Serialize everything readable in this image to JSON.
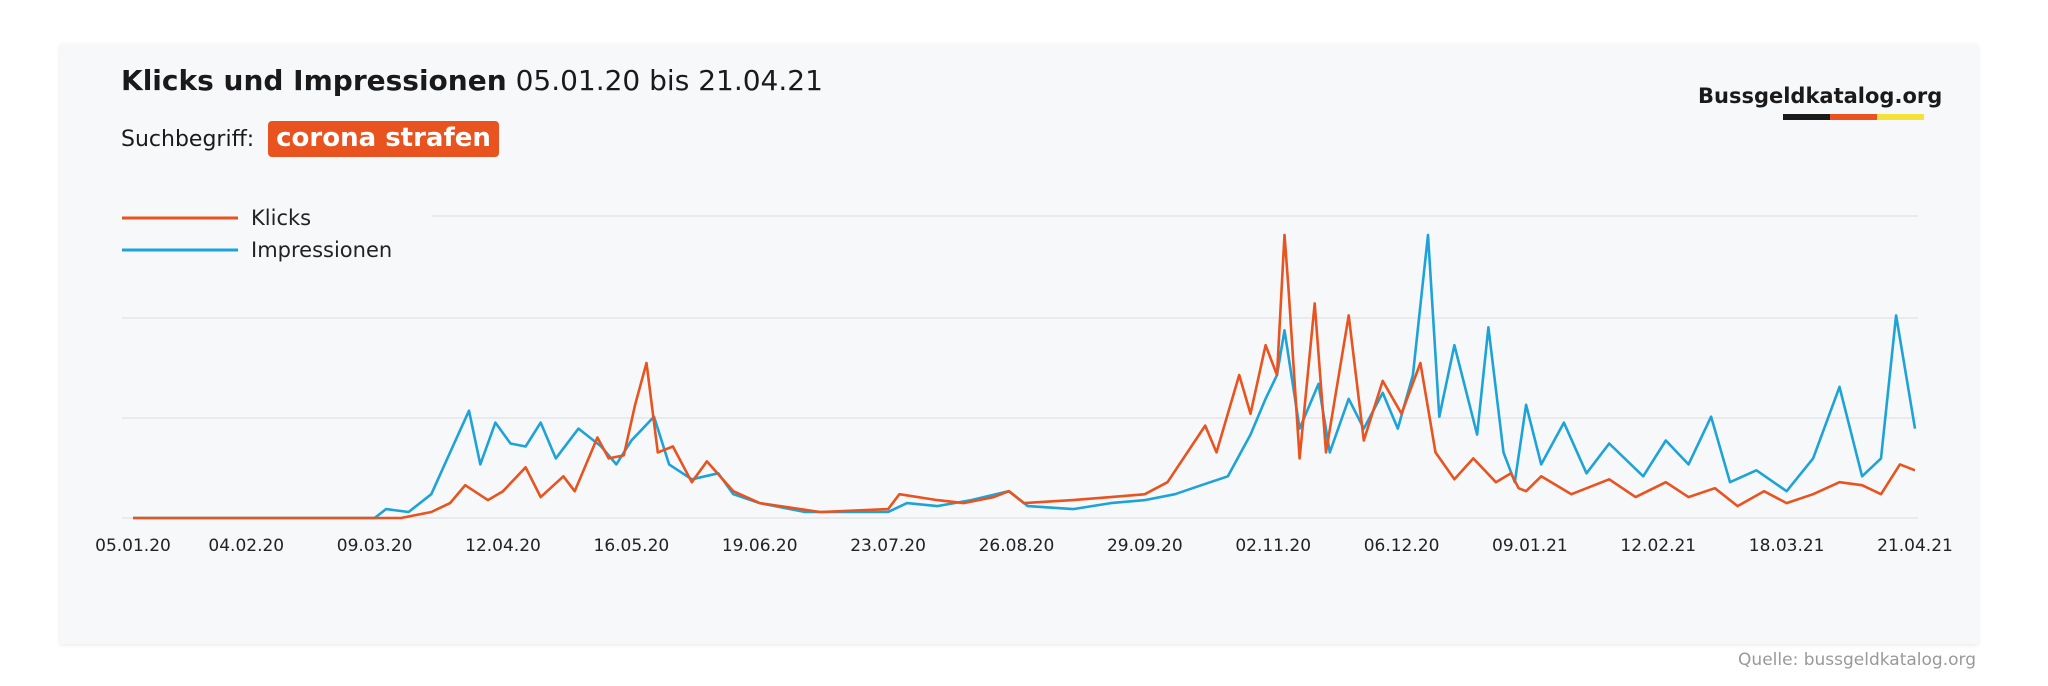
{
  "header": {
    "title_bold": "Klicks und Impressionen",
    "title_range": "05.01.20 bis 21.04.21",
    "search_label": "Suchbegriff:",
    "search_term": "corona strafen",
    "brand": "Bussgeldkatalog.org",
    "source": "Quelle: bussgeldkatalog.org"
  },
  "colors": {
    "klicks": "#e9531f",
    "impressionen": "#1ea3d8",
    "tag_bg": "#e9531f",
    "flag": [
      "#1a1a1a",
      "#e9531f",
      "#f2e23a"
    ]
  },
  "chart_data": {
    "type": "line",
    "x_ticks": [
      "05.01.20",
      "04.02.20",
      "09.03.20",
      "12.04.20",
      "16.05.20",
      "19.06.20",
      "23.07.20",
      "26.08.20",
      "29.09.20",
      "02.11.20",
      "06.12.20",
      "09.01.21",
      "12.02.21",
      "18.03.21",
      "21.04.21"
    ],
    "legend_position": "top-left",
    "grid": "horizontal",
    "y_ticks_labeled": false,
    "series": [
      {
        "name": "Klicks",
        "color": "#e9531f",
        "points": [
          [
            "05.01.20",
            0
          ],
          [
            "09.03.20",
            0
          ],
          [
            "16.03.20",
            0
          ],
          [
            "24.03.20",
            2
          ],
          [
            "29.03.20",
            5
          ],
          [
            "02.04.20",
            11
          ],
          [
            "08.04.20",
            6
          ],
          [
            "12.04.20",
            9
          ],
          [
            "18.04.20",
            17
          ],
          [
            "22.04.20",
            7
          ],
          [
            "28.04.20",
            14
          ],
          [
            "01.05.20",
            9
          ],
          [
            "07.05.20",
            27
          ],
          [
            "10.05.20",
            20
          ],
          [
            "14.05.20",
            21
          ],
          [
            "17.05.20",
            38
          ],
          [
            "20.05.20",
            52
          ],
          [
            "23.05.20",
            22
          ],
          [
            "27.05.20",
            24
          ],
          [
            "01.06.20",
            12
          ],
          [
            "05.06.20",
            19
          ],
          [
            "12.06.20",
            9
          ],
          [
            "19.06.20",
            5
          ],
          [
            "05.07.20",
            2
          ],
          [
            "23.07.20",
            3
          ],
          [
            "26.07.20",
            8
          ],
          [
            "05.08.20",
            6
          ],
          [
            "12.08.20",
            5
          ],
          [
            "20.08.20",
            7
          ],
          [
            "24.08.20",
            9
          ],
          [
            "28.08.20",
            5
          ],
          [
            "10.09.20",
            6
          ],
          [
            "20.09.20",
            7
          ],
          [
            "29.09.20",
            8
          ],
          [
            "05.10.20",
            12
          ],
          [
            "15.10.20",
            31
          ],
          [
            "18.10.20",
            22
          ],
          [
            "24.10.20",
            48
          ],
          [
            "27.10.20",
            35
          ],
          [
            "31.10.20",
            58
          ],
          [
            "03.11.20",
            48
          ],
          [
            "05.11.20",
            95
          ],
          [
            "06.11.20",
            78
          ],
          [
            "09.11.20",
            20
          ],
          [
            "13.11.20",
            72
          ],
          [
            "16.11.20",
            22
          ],
          [
            "22.11.20",
            68
          ],
          [
            "26.11.20",
            26
          ],
          [
            "01.12.20",
            46
          ],
          [
            "06.12.20",
            35
          ],
          [
            "11.12.20",
            52
          ],
          [
            "15.12.20",
            22
          ],
          [
            "20.12.20",
            13
          ],
          [
            "25.12.20",
            20
          ],
          [
            "31.12.20",
            12
          ],
          [
            "04.01.21",
            15
          ],
          [
            "06.01.21",
            10
          ],
          [
            "08.01.21",
            9
          ],
          [
            "12.01.21",
            14
          ],
          [
            "20.01.21",
            8
          ],
          [
            "30.01.21",
            13
          ],
          [
            "06.02.21",
            7
          ],
          [
            "14.02.21",
            12
          ],
          [
            "20.02.21",
            7
          ],
          [
            "27.02.21",
            10
          ],
          [
            "05.03.21",
            4
          ],
          [
            "12.03.21",
            9
          ],
          [
            "18.03.21",
            5
          ],
          [
            "25.03.21",
            8
          ],
          [
            "01.04.21",
            12
          ],
          [
            "07.04.21",
            11
          ],
          [
            "12.04.21",
            8
          ],
          [
            "17.04.21",
            18
          ],
          [
            "21.04.21",
            16
          ]
        ]
      },
      {
        "name": "Impressionen",
        "color": "#1ea3d8",
        "points": [
          [
            "05.01.20",
            0
          ],
          [
            "09.03.20",
            0
          ],
          [
            "12.03.20",
            3
          ],
          [
            "18.03.20",
            2
          ],
          [
            "24.03.20",
            8
          ],
          [
            "29.03.20",
            22
          ],
          [
            "03.04.20",
            36
          ],
          [
            "06.04.20",
            18
          ],
          [
            "10.04.20",
            32
          ],
          [
            "14.04.20",
            25
          ],
          [
            "18.04.20",
            24
          ],
          [
            "22.04.20",
            32
          ],
          [
            "26.04.20",
            20
          ],
          [
            "02.05.20",
            30
          ],
          [
            "08.05.20",
            24
          ],
          [
            "12.05.20",
            18
          ],
          [
            "16.05.20",
            26
          ],
          [
            "22.05.20",
            34
          ],
          [
            "26.05.20",
            18
          ],
          [
            "01.06.20",
            13
          ],
          [
            "08.06.20",
            15
          ],
          [
            "12.06.20",
            8
          ],
          [
            "19.06.20",
            5
          ],
          [
            "01.07.20",
            2
          ],
          [
            "23.07.20",
            2
          ],
          [
            "28.07.20",
            5
          ],
          [
            "05.08.20",
            4
          ],
          [
            "14.08.20",
            6
          ],
          [
            "24.08.20",
            9
          ],
          [
            "29.08.20",
            4
          ],
          [
            "10.09.20",
            3
          ],
          [
            "20.09.20",
            5
          ],
          [
            "29.09.20",
            6
          ],
          [
            "07.10.20",
            8
          ],
          [
            "14.10.20",
            11
          ],
          [
            "21.10.20",
            14
          ],
          [
            "27.10.20",
            28
          ],
          [
            "31.10.20",
            40
          ],
          [
            "03.11.20",
            48
          ],
          [
            "05.11.20",
            63
          ],
          [
            "09.11.20",
            30
          ],
          [
            "14.11.20",
            45
          ],
          [
            "17.11.20",
            22
          ],
          [
            "22.11.20",
            40
          ],
          [
            "26.11.20",
            30
          ],
          [
            "01.12.20",
            42
          ],
          [
            "05.12.20",
            30
          ],
          [
            "09.12.20",
            48
          ],
          [
            "13.12.20",
            95
          ],
          [
            "16.12.20",
            34
          ],
          [
            "20.12.20",
            58
          ],
          [
            "26.12.20",
            28
          ],
          [
            "29.12.20",
            64
          ],
          [
            "02.01.21",
            22
          ],
          [
            "05.01.21",
            12
          ],
          [
            "08.01.21",
            38
          ],
          [
            "12.01.21",
            18
          ],
          [
            "18.01.21",
            32
          ],
          [
            "24.01.21",
            15
          ],
          [
            "30.01.21",
            25
          ],
          [
            "08.02.21",
            14
          ],
          [
            "14.02.21",
            26
          ],
          [
            "20.02.21",
            18
          ],
          [
            "26.02.21",
            34
          ],
          [
            "03.03.21",
            12
          ],
          [
            "10.03.21",
            16
          ],
          [
            "18.03.21",
            9
          ],
          [
            "25.03.21",
            20
          ],
          [
            "01.04.21",
            44
          ],
          [
            "07.04.21",
            14
          ],
          [
            "12.04.21",
            20
          ],
          [
            "16.04.21",
            68
          ],
          [
            "21.04.21",
            30
          ]
        ]
      }
    ]
  }
}
